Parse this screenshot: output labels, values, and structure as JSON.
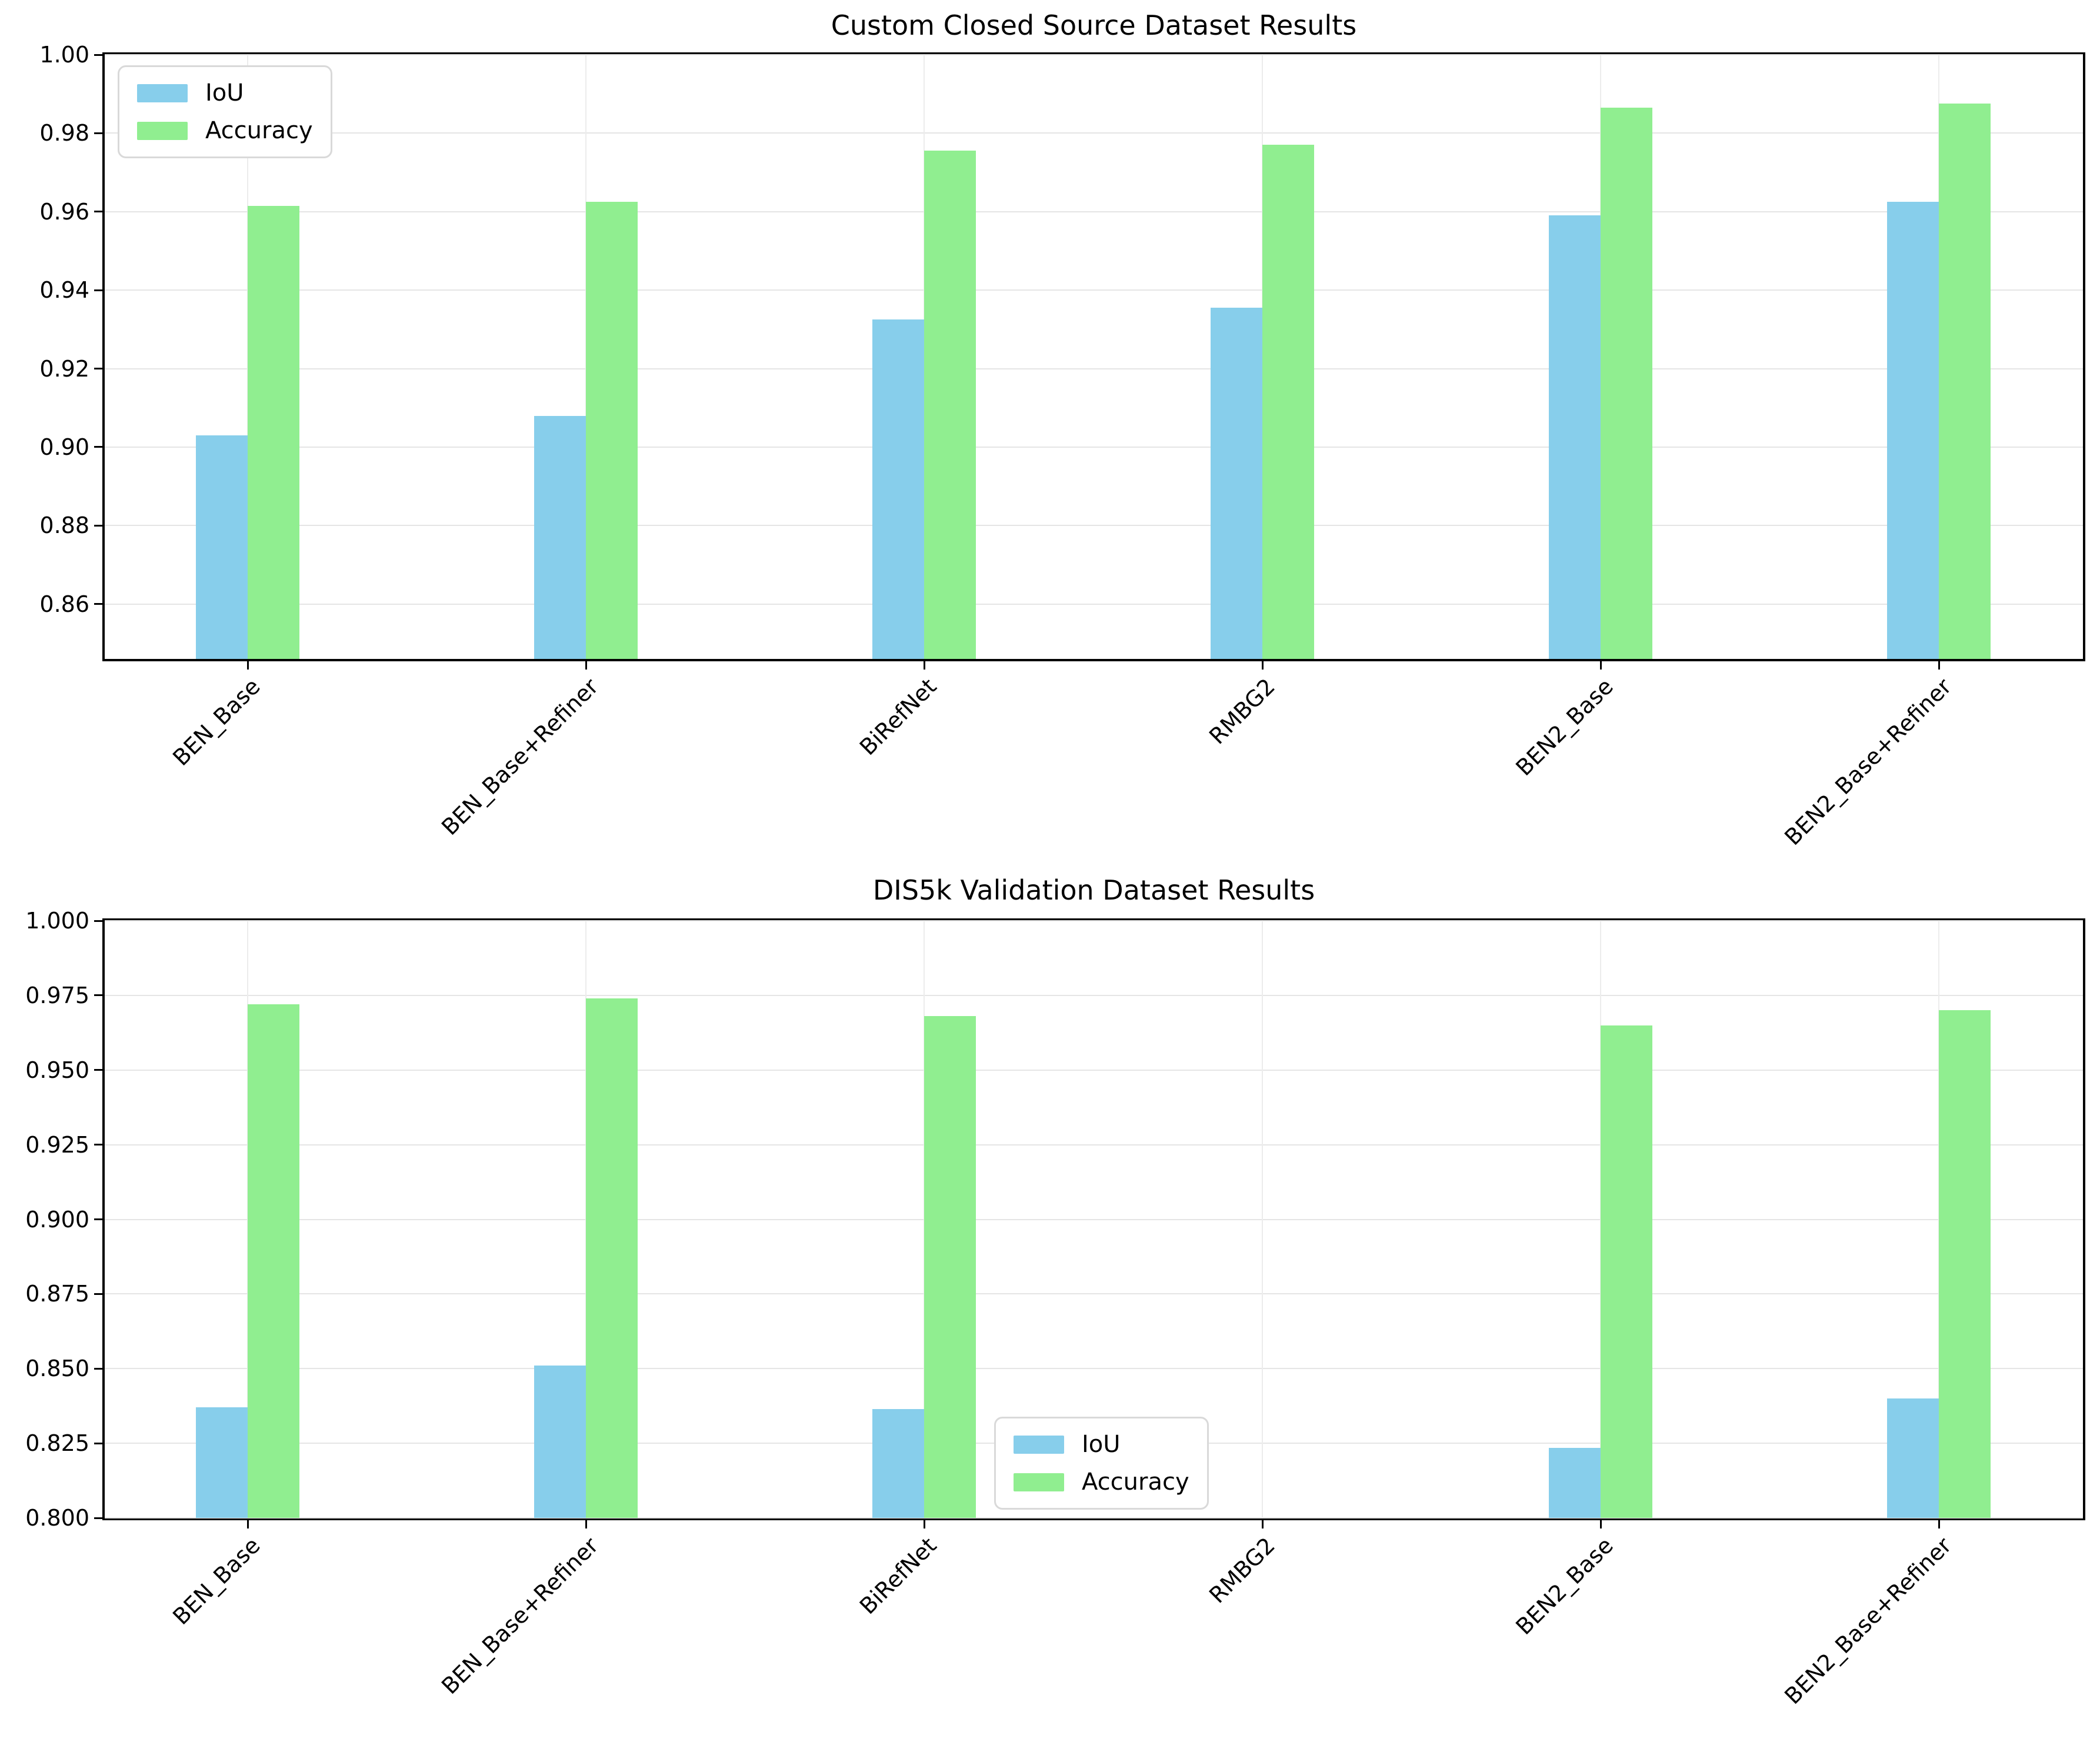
{
  "figure": {
    "background": "#ffffff"
  },
  "chart_data": [
    {
      "type": "bar",
      "title": "Custom Closed Source Dataset Results",
      "categories": [
        "BEN_Base",
        "BEN_Base+Refiner",
        "BiRefNet",
        "RMBG2",
        "BEN2_Base",
        "BEN2_Base+Refiner"
      ],
      "series": [
        {
          "name": "IoU",
          "color": "#87ceeb",
          "values": [
            0.903,
            0.908,
            0.9325,
            0.9355,
            0.959,
            0.9625
          ]
        },
        {
          "name": "Accuracy",
          "color": "#90ee90",
          "values": [
            0.9615,
            0.9625,
            0.9755,
            0.977,
            0.9865,
            0.9875
          ]
        }
      ],
      "ylim": [
        0.846,
        1.0
      ],
      "ytick_values": [
        1.0,
        0.98,
        0.96,
        0.94,
        0.92,
        0.9,
        0.88,
        0.86
      ],
      "ytick_labels": [
        "1.00",
        "0.98",
        "0.96",
        "0.94",
        "0.92",
        "0.90",
        "0.88",
        "0.86"
      ],
      "grid": true,
      "legend_position": "upper left"
    },
    {
      "type": "bar",
      "title": "DIS5k Validation Dataset Results",
      "categories": [
        "BEN_Base",
        "BEN_Base+Refiner",
        "BiRefNet",
        "RMBG2",
        "BEN2_Base",
        "BEN2_Base+Refiner"
      ],
      "series": [
        {
          "name": "IoU",
          "color": "#87ceeb",
          "values": [
            0.837,
            0.851,
            0.8365,
            null,
            0.8235,
            0.84
          ]
        },
        {
          "name": "Accuracy",
          "color": "#90ee90",
          "values": [
            0.972,
            0.974,
            0.968,
            null,
            0.965,
            0.97
          ]
        }
      ],
      "ylim": [
        0.8,
        1.0
      ],
      "ytick_values": [
        1.0,
        0.975,
        0.95,
        0.925,
        0.9,
        0.875,
        0.85,
        0.825,
        0.8
      ],
      "ytick_labels": [
        "1.000",
        "0.975",
        "0.950",
        "0.925",
        "0.900",
        "0.875",
        "0.850",
        "0.825",
        "0.800"
      ],
      "grid": true,
      "legend_position": "lower center"
    }
  ]
}
